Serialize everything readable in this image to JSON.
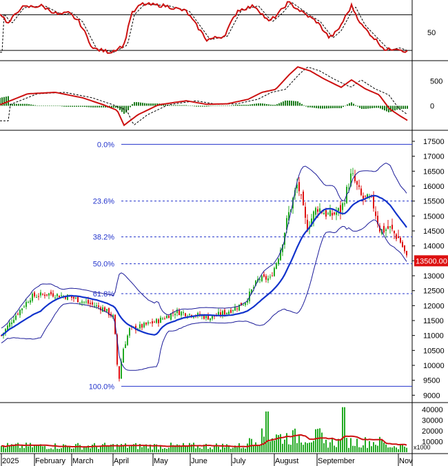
{
  "chart_data": {
    "type": "candlestick",
    "x_labels": [
      "2025",
      "February",
      "March",
      "April",
      "May",
      "June",
      "July",
      "August",
      "September",
      "Nov"
    ],
    "price_axis": {
      "ticks": [
        "9000",
        "9500",
        "10000",
        "10500",
        "11000",
        "11500",
        "12000",
        "12500",
        "13000",
        "13500",
        "14000",
        "14500",
        "15000",
        "15500",
        "16000",
        "16500",
        "17000",
        "17500"
      ],
      "range": [
        8800,
        17800
      ],
      "current_price_label": "13500.00",
      "current_price": 13500
    },
    "fibonacci": [
      {
        "label": "0.0%",
        "price": 17400
      },
      {
        "label": "23.6%",
        "price": 15500
      },
      {
        "label": "38.2%",
        "price": 14300
      },
      {
        "label": "50.0%",
        "price": 13400
      },
      {
        "label": "61.8%",
        "price": 12400
      },
      {
        "label": "100.0%",
        "price": 9300
      }
    ],
    "rsi_panel": {
      "ticks": [
        "50"
      ],
      "upper_line": 70,
      "lower_line": 30,
      "range": [
        20,
        85
      ]
    },
    "macd_panel": {
      "ticks": [
        "500",
        "0"
      ],
      "range": [
        -450,
        850
      ]
    },
    "volume_panel": {
      "ticks": [
        "40000",
        "30000",
        "20000",
        "10000"
      ],
      "unit_label": "x1000",
      "range": [
        0,
        45000
      ]
    },
    "colors": {
      "up": "#22aa22",
      "down": "#dd1111",
      "ma": "#1133cc",
      "band": "#1a1a99",
      "fib": "#2233cc",
      "signal": "#cc1111"
    }
  }
}
